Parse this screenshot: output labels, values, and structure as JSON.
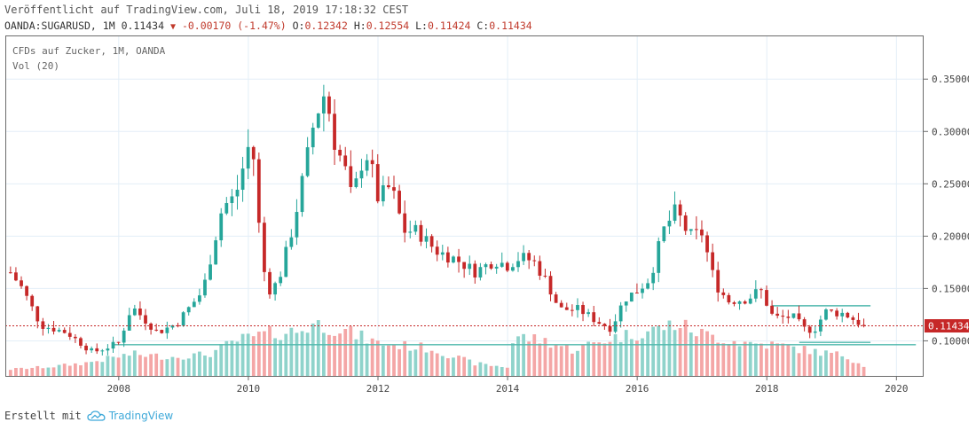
{
  "header": {
    "published": "Veröffentlicht auf TradingView.com, Juli 18, 2019 17:18:32 CEST",
    "symbol": "OANDA:SUGARUSD, 1M",
    "last": "0.11434",
    "change": "-0.00170 (-1.47%)",
    "open_label": "O:",
    "open": "0.12342",
    "high_label": "H:",
    "high": "0.12554",
    "low_label": "L:",
    "low": "0.11424",
    "close_label": "C:",
    "close": "0.11434"
  },
  "chart_data": {
    "type": "candlestick",
    "title": "CFDs auf Zucker, 1M, OANDA",
    "indicator": "Vol (20)",
    "y_ticks": [
      "0.10000",
      "0.15000",
      "0.20000",
      "0.25000",
      "0.30000",
      "0.35000"
    ],
    "x_ticks": [
      "2008",
      "2010",
      "2012",
      "2014",
      "2016",
      "2018",
      "2020"
    ],
    "ylim": [
      0.0665,
      0.3917
    ],
    "xlim": [
      2006.25,
      2020.42
    ],
    "last_price_label": "0.11434",
    "last_price": 0.11434,
    "horizontal_lines": [
      {
        "y": 0.0963,
        "x_start": 2007.9,
        "x_end": 2020.3
      },
      {
        "y": 0.0985,
        "x_start": 2018.5,
        "x_end": 2019.6
      },
      {
        "y": 0.1335,
        "x_start": 2018.08,
        "x_end": 2019.6
      }
    ],
    "colors": {
      "up": "#26a69a",
      "down": "#c62828",
      "vol_up": "#8fd3cb",
      "vol_down": "#f4a6a6",
      "hline": "#4fb8ad",
      "last": "#c62828",
      "grid": "#e3eef7"
    },
    "anchors": [
      [
        2006.3,
        0.168
      ],
      [
        2006.5,
        0.151
      ],
      [
        2006.8,
        0.115
      ],
      [
        2007.2,
        0.108
      ],
      [
        2007.6,
        0.089
      ],
      [
        2008.0,
        0.098
      ],
      [
        2008.2,
        0.133
      ],
      [
        2008.6,
        0.108
      ],
      [
        2008.9,
        0.117
      ],
      [
        2009.0,
        0.125
      ],
      [
        2009.3,
        0.148
      ],
      [
        2009.6,
        0.228
      ],
      [
        2009.8,
        0.238
      ],
      [
        2010.0,
        0.285
      ],
      [
        2010.1,
        0.272
      ],
      [
        2010.2,
        0.175
      ],
      [
        2010.35,
        0.145
      ],
      [
        2010.5,
        0.165
      ],
      [
        2010.7,
        0.212
      ],
      [
        2010.9,
        0.273
      ],
      [
        2011.0,
        0.305
      ],
      [
        2011.1,
        0.325
      ],
      [
        2011.2,
        0.34
      ],
      [
        2011.3,
        0.295
      ],
      [
        2011.5,
        0.262
      ],
      [
        2011.6,
        0.235
      ],
      [
        2011.8,
        0.282
      ],
      [
        2011.9,
        0.265
      ],
      [
        2012.0,
        0.236
      ],
      [
        2012.2,
        0.248
      ],
      [
        2012.4,
        0.205
      ],
      [
        2012.6,
        0.205
      ],
      [
        2012.9,
        0.186
      ],
      [
        2013.2,
        0.178
      ],
      [
        2013.5,
        0.166
      ],
      [
        2013.8,
        0.177
      ],
      [
        2014.0,
        0.172
      ],
      [
        2014.2,
        0.18
      ],
      [
        2014.4,
        0.176
      ],
      [
        2014.6,
        0.157
      ],
      [
        2014.8,
        0.13
      ],
      [
        2015.1,
        0.13
      ],
      [
        2015.4,
        0.118
      ],
      [
        2015.6,
        0.112
      ],
      [
        2015.8,
        0.14
      ],
      [
        2016.0,
        0.148
      ],
      [
        2016.2,
        0.16
      ],
      [
        2016.4,
        0.205
      ],
      [
        2016.6,
        0.225
      ],
      [
        2016.8,
        0.2
      ],
      [
        2017.0,
        0.203
      ],
      [
        2017.2,
        0.155
      ],
      [
        2017.4,
        0.138
      ],
      [
        2017.7,
        0.14
      ],
      [
        2017.9,
        0.149
      ],
      [
        2018.1,
        0.122
      ],
      [
        2018.4,
        0.123
      ],
      [
        2018.6,
        0.11
      ],
      [
        2018.75,
        0.112
      ],
      [
        2018.9,
        0.128
      ],
      [
        2019.2,
        0.126
      ],
      [
        2019.5,
        0.114
      ]
    ],
    "volume_anchors": [
      [
        2006.3,
        0.09
      ],
      [
        2007.0,
        0.13
      ],
      [
        2007.5,
        0.18
      ],
      [
        2008.2,
        0.3
      ],
      [
        2008.8,
        0.26
      ],
      [
        2009.4,
        0.3
      ],
      [
        2009.8,
        0.48
      ],
      [
        2010.3,
        0.58
      ],
      [
        2010.8,
        0.62
      ],
      [
        2011.0,
        0.72
      ],
      [
        2011.4,
        0.65
      ],
      [
        2012.0,
        0.45
      ],
      [
        2012.8,
        0.38
      ],
      [
        2013.5,
        0.17
      ],
      [
        2014.0,
        0.12
      ],
      [
        2014.1,
        0.55
      ],
      [
        2014.6,
        0.48
      ],
      [
        2015.0,
        0.36
      ],
      [
        2015.6,
        0.52
      ],
      [
        2016.2,
        0.62
      ],
      [
        2016.6,
        0.72
      ],
      [
        2017.0,
        0.58
      ],
      [
        2017.6,
        0.46
      ],
      [
        2018.2,
        0.42
      ],
      [
        2018.7,
        0.34
      ],
      [
        2019.2,
        0.28
      ],
      [
        2019.5,
        0.14
      ]
    ]
  },
  "footer": {
    "created_with": "Erstellt mit",
    "brand": "TradingView"
  }
}
